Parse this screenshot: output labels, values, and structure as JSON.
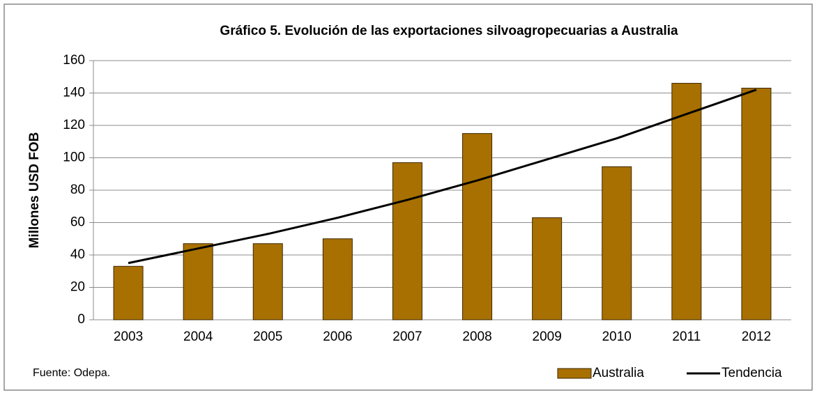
{
  "chart_data": {
    "type": "bar",
    "title": "Gráfico 5. Evolución de las exportaciones silvoagropecuarias a Australia",
    "y_label": "Millones USD FOB",
    "source": "Fuente: Odepa.",
    "categories": [
      "2003",
      "2004",
      "2005",
      "2006",
      "2007",
      "2008",
      "2009",
      "2010",
      "2011",
      "2012"
    ],
    "series": [
      {
        "name": "Australia",
        "type": "bar",
        "color": "#a87000",
        "values": [
          33,
          47,
          47,
          50,
          97,
          115,
          63,
          94.5,
          146,
          143
        ]
      },
      {
        "name": "Tendencia",
        "type": "line",
        "color": "#000000",
        "values": [
          35,
          44,
          53,
          63,
          74,
          86,
          99,
          112,
          127,
          142
        ]
      }
    ],
    "ylim": [
      0,
      160
    ],
    "yticks": [
      0,
      20,
      40,
      60,
      80,
      100,
      120,
      140,
      160
    ],
    "grid": true,
    "legend": "lower right"
  }
}
